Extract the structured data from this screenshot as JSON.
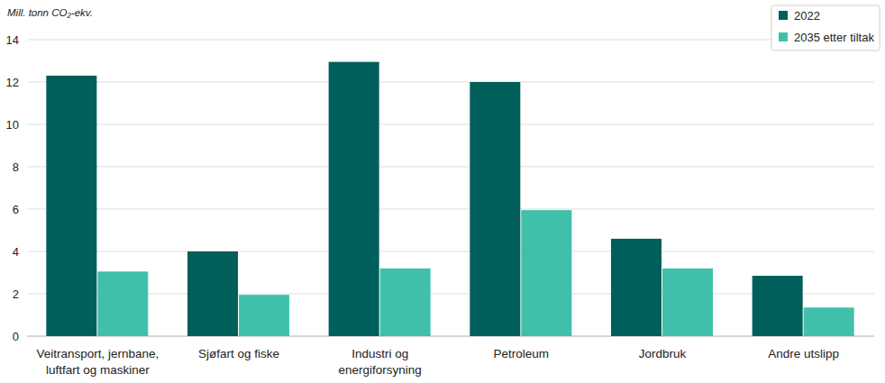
{
  "chart_data": {
    "type": "bar",
    "y_label": "Mill. tonn CO₂-ekv.",
    "categories": [
      "Veitransport, jernbane, luftfart og maskiner",
      "Sjøfart og fiske",
      "Industri og energiforsyning",
      "Petroleum",
      "Jordbruk",
      "Andre utslipp"
    ],
    "series": [
      {
        "name": "2022",
        "color": "#005f5a",
        "values": [
          12.3,
          4.0,
          12.95,
          12.0,
          4.6,
          2.85
        ]
      },
      {
        "name": "2035 etter tiltak",
        "color": "#40c0aa",
        "values": [
          3.05,
          1.95,
          3.2,
          5.95,
          3.2,
          1.35
        ]
      }
    ],
    "ylim": [
      0,
      14
    ],
    "yticks": [
      0,
      2,
      4,
      6,
      8,
      10,
      12,
      14
    ],
    "grid": true,
    "legend": "upper right"
  }
}
